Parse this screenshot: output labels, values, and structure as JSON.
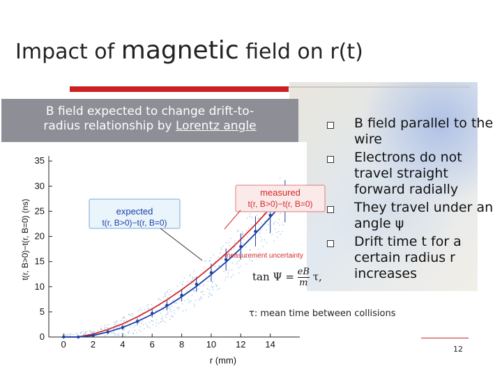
{
  "slide": {
    "title_part1": "Impact of ",
    "title_part2": "magnetic",
    "title_part3": " field on r(t)",
    "callout_line1": "B field expected to change drift-to-",
    "callout_line2_a": "radius relationship by ",
    "callout_line2_b": "Lorentz angle",
    "bullets": [
      "B field parallel to the wire",
      "Electrons do not travel straight forward radially",
      "They travel under an angle ψ",
      "Drift time t for a certain radius r increases"
    ],
    "formula_lhs": "tan Ψ =",
    "formula_num": "eB",
    "formula_den": "m",
    "formula_tail": "τ,",
    "tau_note": "τ: mean time between collisions",
    "page_number": "12"
  },
  "chart_data": {
    "type": "scatter",
    "xlabel": "r (mm)",
    "ylabel": "t(r, B>0)−t(r, B=0) (ns)",
    "xlim": [
      -1,
      16
    ],
    "ylim": [
      0,
      36
    ],
    "x_ticks": [
      "0",
      "2",
      "4",
      "6",
      "8",
      "10",
      "12",
      "14"
    ],
    "y_ticks": [
      "0",
      "5",
      "10",
      "15",
      "20",
      "25",
      "30",
      "35"
    ],
    "annotations": {
      "expected_line1": "expected",
      "expected_line2": "t(r, B>0)−t(r, B=0)",
      "measured_line1": "measured",
      "measured_line2": "t(r, B>0)−t(r, B=0)",
      "uncertainty": "measurement uncertainty"
    },
    "series": [
      {
        "values": [
          [
            0,
            0
          ],
          [
            1,
            0
          ],
          [
            2,
            0.6
          ],
          [
            3,
            1.5
          ],
          [
            4,
            2.6
          ],
          [
            5,
            4.0
          ],
          [
            6,
            5.6
          ],
          [
            7,
            7.4
          ],
          [
            8,
            9.4
          ],
          [
            9,
            11.6
          ],
          [
            10,
            14.0
          ],
          [
            11,
            16.6
          ],
          [
            12,
            19.4
          ],
          [
            13,
            22.4
          ],
          [
            14,
            25.6
          ],
          [
            15,
            29.0
          ]
        ]
      },
      {
        "values": [
          [
            0,
            0
          ],
          [
            1,
            0
          ],
          [
            2,
            0.3
          ],
          [
            3,
            1.0
          ],
          [
            4,
            1.9
          ],
          [
            5,
            3.1
          ],
          [
            6,
            4.5
          ],
          [
            7,
            6.1
          ],
          [
            8,
            8.0
          ],
          [
            9,
            10.1
          ],
          [
            10,
            12.4
          ],
          [
            11,
            14.9
          ],
          [
            12,
            17.6
          ],
          [
            13,
            20.6
          ],
          [
            14,
            23.8
          ],
          [
            15,
            27.2
          ]
        ]
      },
      {
        "values": [
          [
            0,
            0
          ],
          [
            1,
            0
          ],
          [
            2,
            0.3
          ],
          [
            3,
            1.0
          ],
          [
            4,
            1.9
          ],
          [
            5,
            3.1
          ],
          [
            6,
            4.7
          ],
          [
            7,
            6.3
          ],
          [
            8,
            8.3
          ],
          [
            9,
            10.5
          ],
          [
            10,
            12.8
          ],
          [
            11,
            15.4
          ],
          [
            12,
            18.0
          ],
          [
            13,
            21.0
          ],
          [
            14,
            24.2
          ],
          [
            15,
            27.0
          ]
        ],
        "errors": [
          0,
          0,
          0.3,
          0.4,
          0.5,
          0.6,
          0.8,
          1.0,
          1.2,
          1.5,
          1.8,
          2.2,
          2.6,
          3.0,
          3.5,
          4.2
        ]
      }
    ],
    "colors": {
      "measured": "#d42a2a",
      "expected": "#1b3fa8",
      "points": "#1b3fa8",
      "scatter_cloud": "#6aa8d8"
    }
  }
}
